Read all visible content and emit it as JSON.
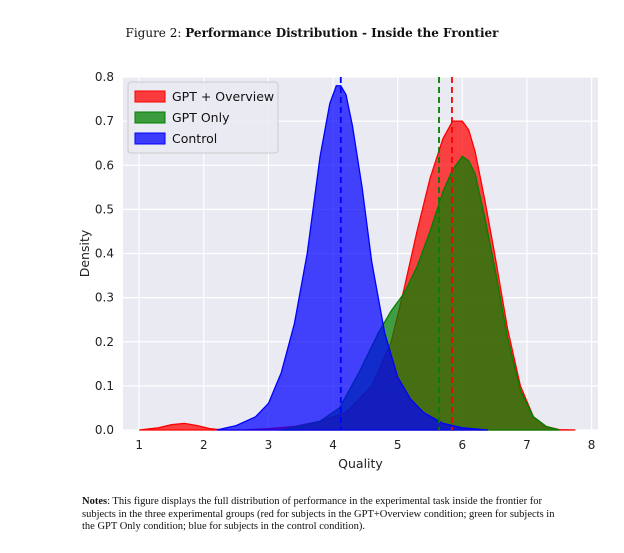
{
  "figure": {
    "label": "Figure 2:",
    "title": "Performance Distribution - Inside the Frontier"
  },
  "notes": {
    "label": "Notes",
    "text": ": This figure displays the full distribution of performance in the experimental task inside the frontier for subjects in the three experimental groups (red for subjects in the GPT+Overview condition; green for subjects in the GPT Only condition; blue for subjects in the control condition)."
  },
  "chart_data": {
    "type": "area",
    "xlabel": "Quality",
    "ylabel": "Density",
    "xlim": [
      0.75,
      8.1
    ],
    "ylim": [
      0,
      0.8
    ],
    "xticks": [
      1,
      2,
      3,
      4,
      5,
      6,
      7,
      8
    ],
    "yticks": [
      0.0,
      0.1,
      0.2,
      0.3,
      0.4,
      0.5,
      0.6,
      0.7,
      0.8
    ],
    "grid": true,
    "legend_position": "top-left",
    "series": [
      {
        "name": "GPT + Overview",
        "color": "#ff0000",
        "mean": 5.84,
        "x": [
          1.0,
          1.3,
          1.5,
          1.7,
          1.9,
          2.1,
          2.3,
          2.6,
          3.0,
          3.4,
          3.8,
          4.2,
          4.6,
          4.9,
          5.1,
          5.3,
          5.5,
          5.7,
          5.85,
          6.0,
          6.1,
          6.2,
          6.35,
          6.5,
          6.7,
          6.9,
          7.1,
          7.3,
          7.5,
          7.75
        ],
        "y": [
          0.0,
          0.005,
          0.012,
          0.015,
          0.01,
          0.003,
          0.0,
          0.0,
          0.003,
          0.008,
          0.02,
          0.04,
          0.1,
          0.2,
          0.32,
          0.45,
          0.57,
          0.66,
          0.7,
          0.7,
          0.68,
          0.63,
          0.52,
          0.4,
          0.23,
          0.1,
          0.03,
          0.008,
          0.001,
          0.0
        ]
      },
      {
        "name": "GPT Only",
        "color": "#008000",
        "mean": 5.64,
        "x": [
          3.2,
          3.5,
          3.8,
          4.1,
          4.4,
          4.7,
          4.9,
          5.1,
          5.3,
          5.5,
          5.7,
          5.85,
          6.0,
          6.1,
          6.2,
          6.35,
          6.5,
          6.7,
          6.9,
          7.1,
          7.3,
          7.5
        ],
        "y": [
          0.0,
          0.01,
          0.02,
          0.05,
          0.13,
          0.22,
          0.27,
          0.31,
          0.37,
          0.45,
          0.54,
          0.59,
          0.62,
          0.61,
          0.58,
          0.48,
          0.37,
          0.21,
          0.09,
          0.03,
          0.008,
          0.0
        ]
      },
      {
        "name": "Control",
        "color": "#0000ff",
        "mean": 4.12,
        "x": [
          2.2,
          2.5,
          2.8,
          3.0,
          3.2,
          3.4,
          3.6,
          3.8,
          3.95,
          4.05,
          4.12,
          4.2,
          4.3,
          4.45,
          4.6,
          4.8,
          5.0,
          5.2,
          5.4,
          5.7,
          6.0,
          6.4
        ],
        "y": [
          0.0,
          0.01,
          0.03,
          0.06,
          0.13,
          0.24,
          0.4,
          0.62,
          0.74,
          0.78,
          0.78,
          0.76,
          0.69,
          0.55,
          0.38,
          0.22,
          0.12,
          0.07,
          0.04,
          0.015,
          0.005,
          0.0
        ]
      }
    ]
  }
}
